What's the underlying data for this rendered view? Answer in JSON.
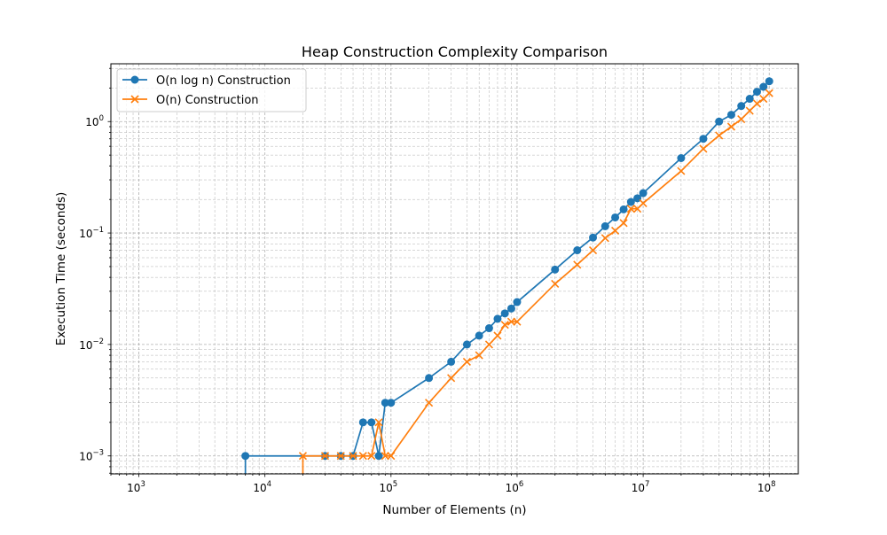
{
  "chart_data": {
    "type": "line",
    "title": "Heap Construction Complexity Comparison",
    "xlabel": "Number of Elements (n)",
    "ylabel": "Execution Time (seconds)",
    "xscale": "log",
    "yscale": "log",
    "xlim": [
      600,
      170000000
    ],
    "ylim": [
      0.00069,
      3.3
    ],
    "x_ticks": [
      {
        "value": 1000,
        "label": "10",
        "exp": "3"
      },
      {
        "value": 10000,
        "label": "10",
        "exp": "4"
      },
      {
        "value": 100000,
        "label": "10",
        "exp": "5"
      },
      {
        "value": 1000000,
        "label": "10",
        "exp": "6"
      },
      {
        "value": 10000000,
        "label": "10",
        "exp": "7"
      },
      {
        "value": 100000000,
        "label": "10",
        "exp": "8"
      }
    ],
    "y_ticks": [
      {
        "value": 0.001,
        "label": "10",
        "exp": "−3"
      },
      {
        "value": 0.01,
        "label": "10",
        "exp": "−2"
      },
      {
        "value": 0.1,
        "label": "10",
        "exp": "−1"
      },
      {
        "value": 1,
        "label": "10",
        "exp": "0"
      }
    ],
    "grid": true,
    "legend_position": "top-left",
    "series": [
      {
        "name": "O(n log n) Construction",
        "color": "#1f77b4",
        "marker": "circle",
        "points": [
          [
            7000,
            0.001
          ],
          [
            30000,
            0.001
          ],
          [
            40000,
            0.001
          ],
          [
            50000,
            0.001
          ],
          [
            60000,
            0.002
          ],
          [
            70000,
            0.002
          ],
          [
            80000,
            0.001
          ],
          [
            90000,
            0.003
          ],
          [
            100000,
            0.003
          ],
          [
            200000,
            0.005
          ],
          [
            300000,
            0.007
          ],
          [
            400000,
            0.01
          ],
          [
            500000,
            0.012
          ],
          [
            600000,
            0.014
          ],
          [
            700000,
            0.017
          ],
          [
            800000,
            0.019
          ],
          [
            900000,
            0.021
          ],
          [
            1000000,
            0.024
          ],
          [
            2000000,
            0.047
          ],
          [
            3000000,
            0.07
          ],
          [
            4000000,
            0.091
          ],
          [
            5000000,
            0.115
          ],
          [
            6000000,
            0.138
          ],
          [
            7000000,
            0.163
          ],
          [
            8000000,
            0.19
          ],
          [
            9000000,
            0.205
          ],
          [
            10000000,
            0.228
          ],
          [
            20000000,
            0.47
          ],
          [
            30000000,
            0.7
          ],
          [
            40000000,
            1.0
          ],
          [
            50000000,
            1.15
          ],
          [
            60000000,
            1.38
          ],
          [
            70000000,
            1.6
          ],
          [
            80000000,
            1.85
          ],
          [
            90000000,
            2.05
          ],
          [
            100000000,
            2.3
          ]
        ]
      },
      {
        "name": "O(n) Construction",
        "color": "#ff7f0e",
        "marker": "x",
        "points": [
          [
            20000,
            0.001
          ],
          [
            30000,
            0.001
          ],
          [
            40000,
            0.001
          ],
          [
            50000,
            0.001
          ],
          [
            60000,
            0.001
          ],
          [
            70000,
            0.001
          ],
          [
            80000,
            0.002
          ],
          [
            90000,
            0.001
          ],
          [
            100000,
            0.001
          ],
          [
            200000,
            0.003
          ],
          [
            300000,
            0.005
          ],
          [
            400000,
            0.007
          ],
          [
            500000,
            0.008
          ],
          [
            600000,
            0.01
          ],
          [
            700000,
            0.012
          ],
          [
            800000,
            0.015
          ],
          [
            900000,
            0.016
          ],
          [
            1000000,
            0.016
          ],
          [
            2000000,
            0.035
          ],
          [
            3000000,
            0.052
          ],
          [
            4000000,
            0.07
          ],
          [
            5000000,
            0.09
          ],
          [
            6000000,
            0.105
          ],
          [
            7000000,
            0.123
          ],
          [
            8000000,
            0.165
          ],
          [
            9000000,
            0.165
          ],
          [
            10000000,
            0.185
          ],
          [
            20000000,
            0.36
          ],
          [
            30000000,
            0.57
          ],
          [
            40000000,
            0.75
          ],
          [
            50000000,
            0.9
          ],
          [
            60000000,
            1.05
          ],
          [
            70000000,
            1.25
          ],
          [
            80000000,
            1.45
          ],
          [
            90000000,
            1.6
          ],
          [
            100000000,
            1.8
          ]
        ]
      }
    ]
  }
}
